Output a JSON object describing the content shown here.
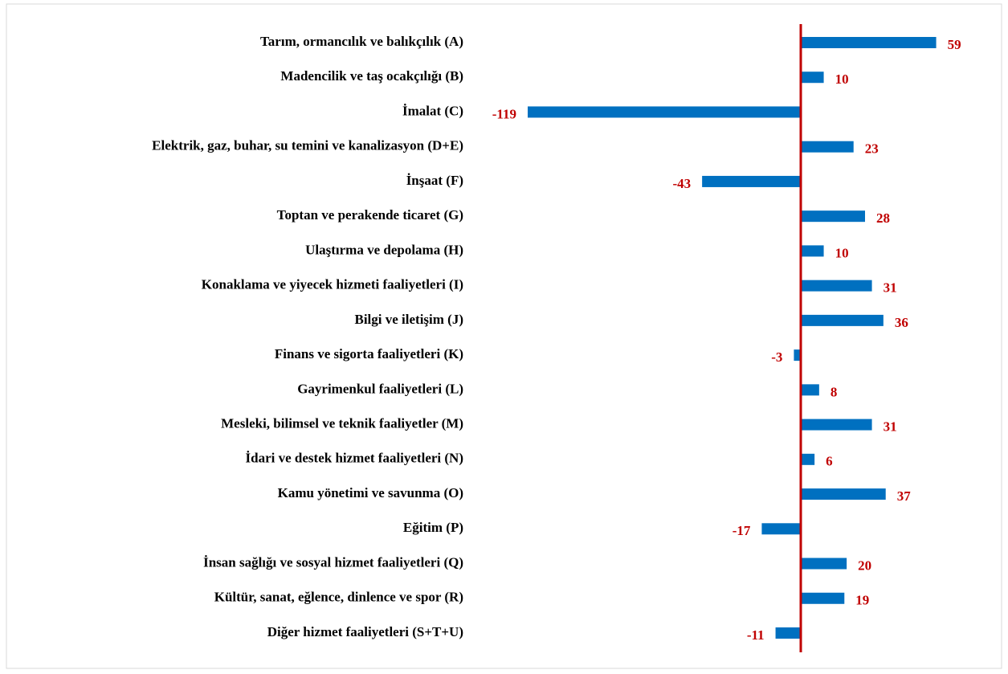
{
  "chart_data": {
    "type": "bar",
    "orientation": "horizontal",
    "categories": [
      "Tarım, ormancılık ve balıkçılık (A)",
      "Madencilik ve taş ocakçılığı (B)",
      "İmalat (C)",
      "Elektrik, gaz, buhar, su temini ve kanalizasyon (D+E)",
      "İnşaat (F)",
      "Toptan ve perakende ticaret (G)",
      "Ulaştırma ve depolama (H)",
      "Konaklama ve yiyecek hizmeti faaliyetleri (I)",
      "Bilgi ve iletişim (J)",
      "Finans ve sigorta faaliyetleri (K)",
      "Gayrimenkul faaliyetleri (L)",
      "Mesleki, bilimsel ve teknik faaliyetler (M)",
      "İdari ve destek hizmet faaliyetleri (N)",
      "Kamu yönetimi ve savunma (O)",
      "Eğitim (P)",
      "İnsan sağlığı ve sosyal hizmet faaliyetleri (Q)",
      "Kültür, sanat, eğlence, dinlence ve spor (R)",
      "Diğer hizmet faaliyetleri (S+T+U)"
    ],
    "values": [
      59,
      10,
      -119,
      23,
      -43,
      28,
      10,
      31,
      36,
      -3,
      8,
      31,
      6,
      37,
      -17,
      20,
      19,
      -11
    ],
    "color": "#0070c0",
    "label_color": "#c00000",
    "zero_line_color": "#c00000"
  }
}
